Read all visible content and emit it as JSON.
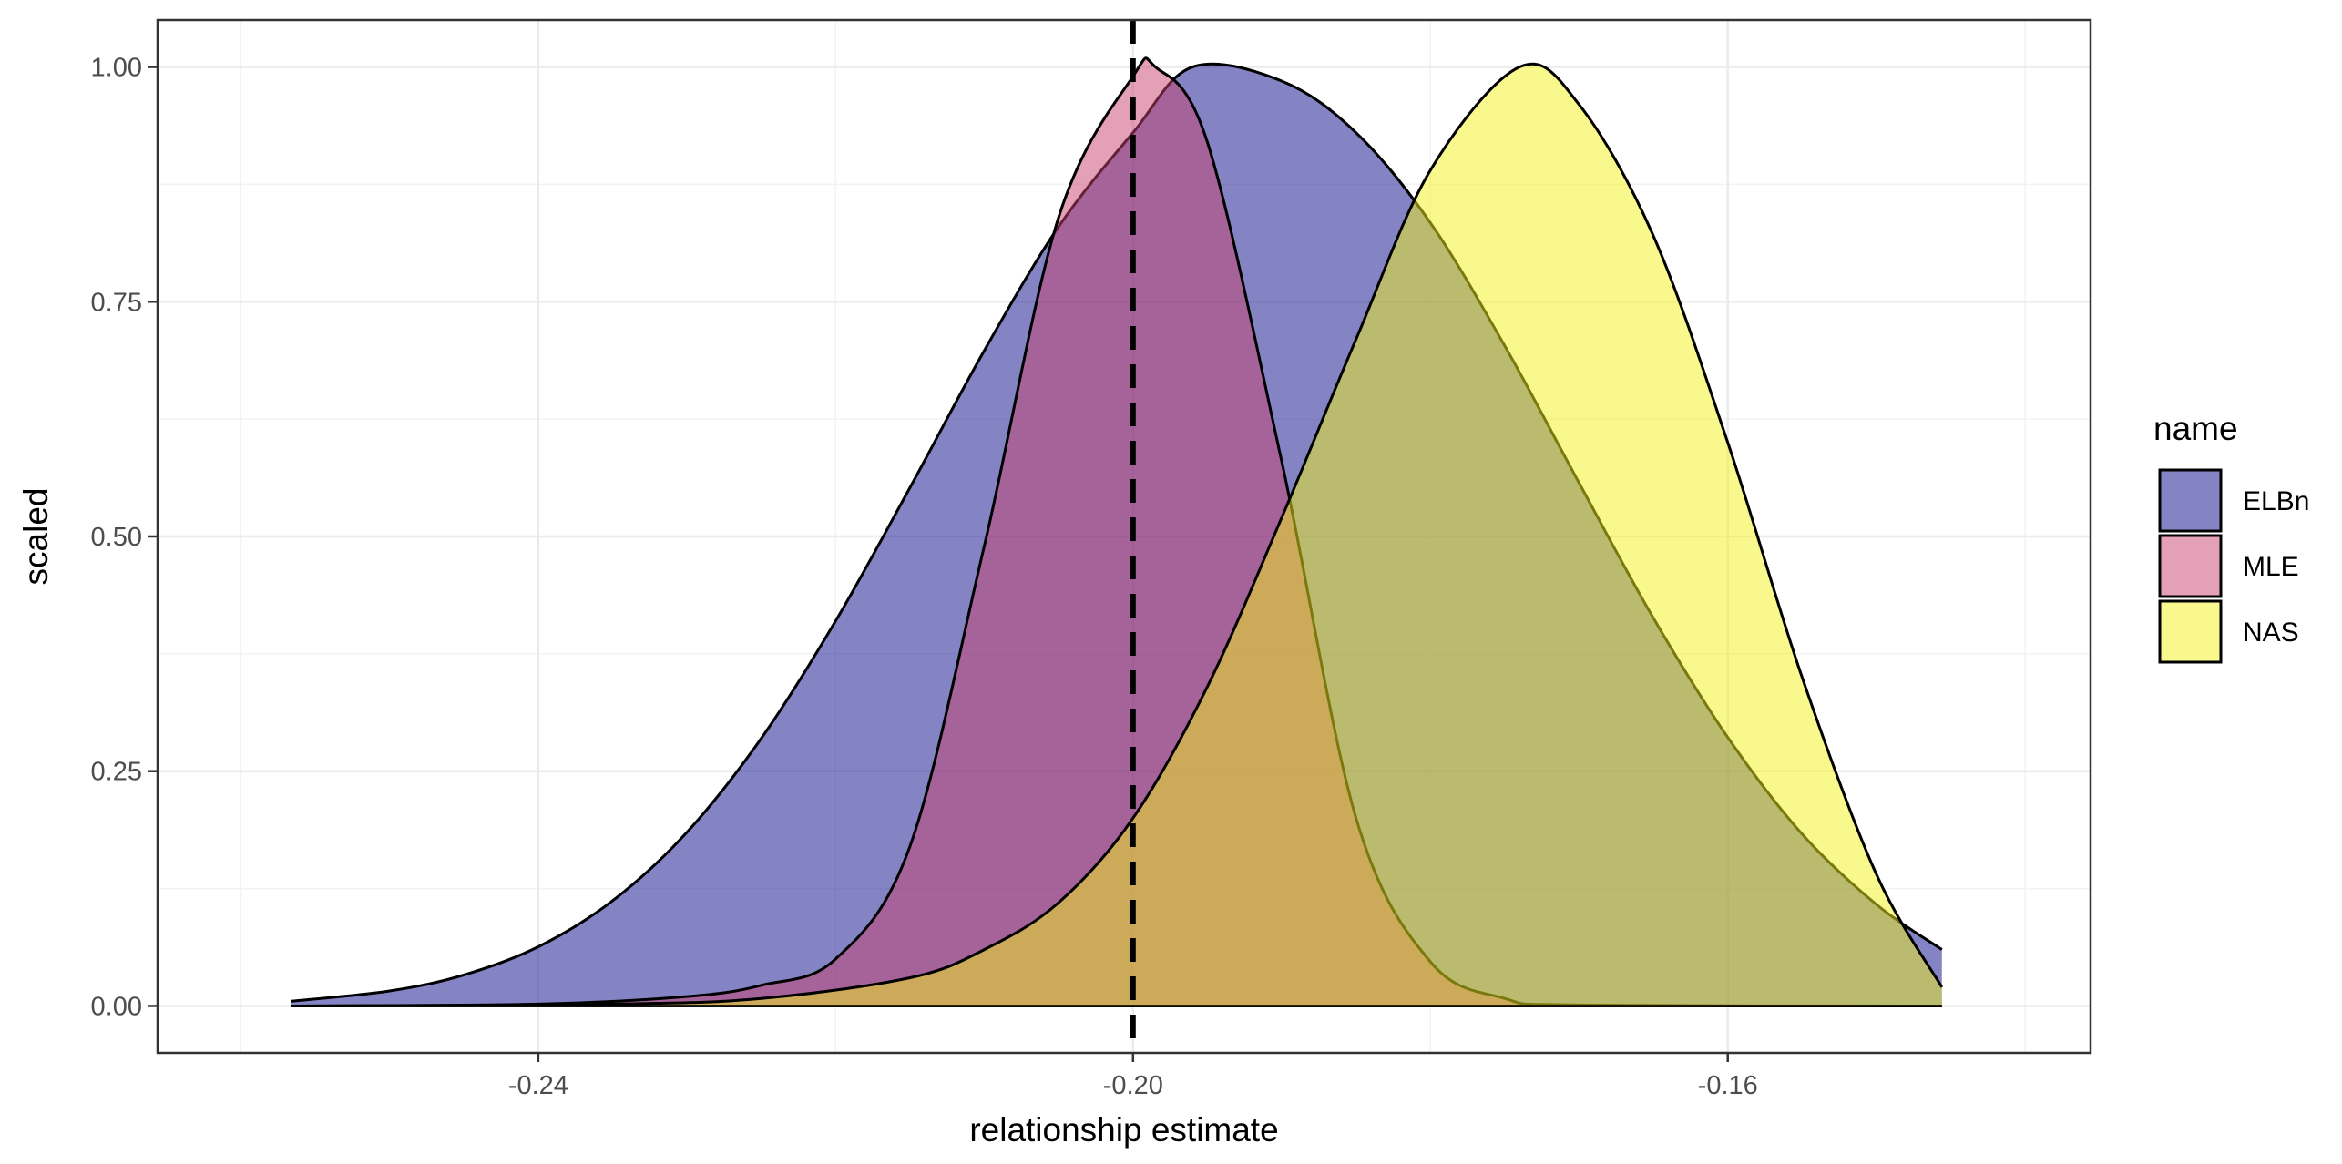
{
  "chart_data": {
    "type": "area",
    "xlabel": "relationship estimate",
    "ylabel": "scaled",
    "xlim": [
      -0.2656,
      -0.1356
    ],
    "ylim": [
      -0.05,
      1.05
    ],
    "x_ticks": [
      -0.24,
      -0.2,
      -0.16
    ],
    "x_tick_labels": [
      "-0.24",
      "-0.20",
      "-0.16"
    ],
    "y_ticks": [
      0,
      0.25,
      0.5,
      0.75,
      1
    ],
    "y_tick_labels": [
      "0.00",
      "0.25",
      "0.50",
      "0.75",
      "1.00"
    ],
    "grid": true,
    "legend": {
      "title": "name",
      "position": "right"
    },
    "vline": {
      "x": -0.2,
      "style": "dashed"
    },
    "series": [
      {
        "name": "ELBn",
        "color": "#0a0a8c",
        "opacity": 0.5,
        "x": [
          -0.2566,
          -0.25,
          -0.245,
          -0.24,
          -0.235,
          -0.23,
          -0.225,
          -0.22,
          -0.215,
          -0.21,
          -0.205,
          -0.2,
          -0.196,
          -0.19,
          -0.185,
          -0.18,
          -0.175,
          -0.17,
          -0.165,
          -0.16,
          -0.155,
          -0.15,
          -0.1456
        ],
        "values": [
          0.005,
          0.016,
          0.033,
          0.063,
          0.112,
          0.185,
          0.285,
          0.41,
          0.552,
          0.698,
          0.83,
          0.93,
          1.0,
          0.985,
          0.93,
          0.834,
          0.703,
          0.557,
          0.413,
          0.286,
          0.183,
          0.108,
          0.06
        ]
      },
      {
        "name": "MLE",
        "color": "#c8416f",
        "opacity": 0.5,
        "x": [
          -0.2566,
          -0.24,
          -0.23,
          -0.225,
          -0.22,
          -0.215,
          -0.21,
          -0.205,
          -0.2,
          -0.1985,
          -0.195,
          -0.19,
          -0.185,
          -0.18,
          -0.175,
          -0.17,
          -0.1456
        ],
        "values": [
          0.0,
          0.002,
          0.01,
          0.022,
          0.05,
          0.17,
          0.49,
          0.84,
          0.99,
          1.0,
          0.92,
          0.58,
          0.2,
          0.047,
          0.008,
          0.001,
          0.0
        ]
      },
      {
        "name": "NAS",
        "color": "#f2f21a",
        "opacity": 0.5,
        "x": [
          -0.2566,
          -0.235,
          -0.225,
          -0.215,
          -0.21,
          -0.205,
          -0.2,
          -0.195,
          -0.19,
          -0.185,
          -0.18,
          -0.174,
          -0.17,
          -0.165,
          -0.16,
          -0.155,
          -0.15,
          -0.1456
        ],
        "values": [
          0.0,
          0.002,
          0.008,
          0.03,
          0.06,
          0.11,
          0.2,
          0.34,
          0.52,
          0.71,
          0.89,
          1.0,
          0.96,
          0.82,
          0.6,
          0.35,
          0.14,
          0.02
        ]
      }
    ]
  }
}
